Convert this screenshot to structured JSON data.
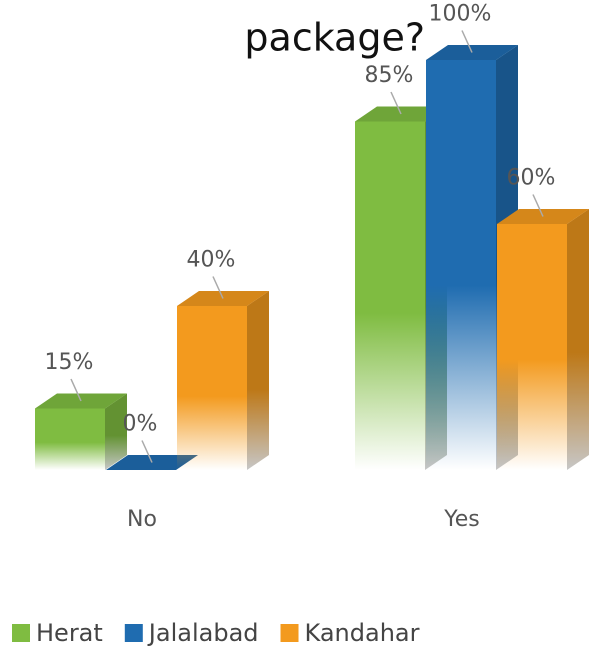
{
  "chart_data": {
    "type": "bar3d",
    "title": "package?",
    "categories": [
      "No",
      "Yes"
    ],
    "series": [
      {
        "name": "Herat",
        "color": "#7fbc41",
        "values": [
          15,
          85
        ],
        "value_labels": [
          "15%",
          "85%"
        ]
      },
      {
        "name": "Jalalabad",
        "color": "#1f6cb0",
        "values": [
          0,
          100
        ],
        "value_labels": [
          "0%",
          "100%"
        ]
      },
      {
        "name": "Kandahar",
        "color": "#f39a1e",
        "values": [
          40,
          60
        ],
        "value_labels": [
          "40%",
          "60%"
        ]
      }
    ]
  }
}
